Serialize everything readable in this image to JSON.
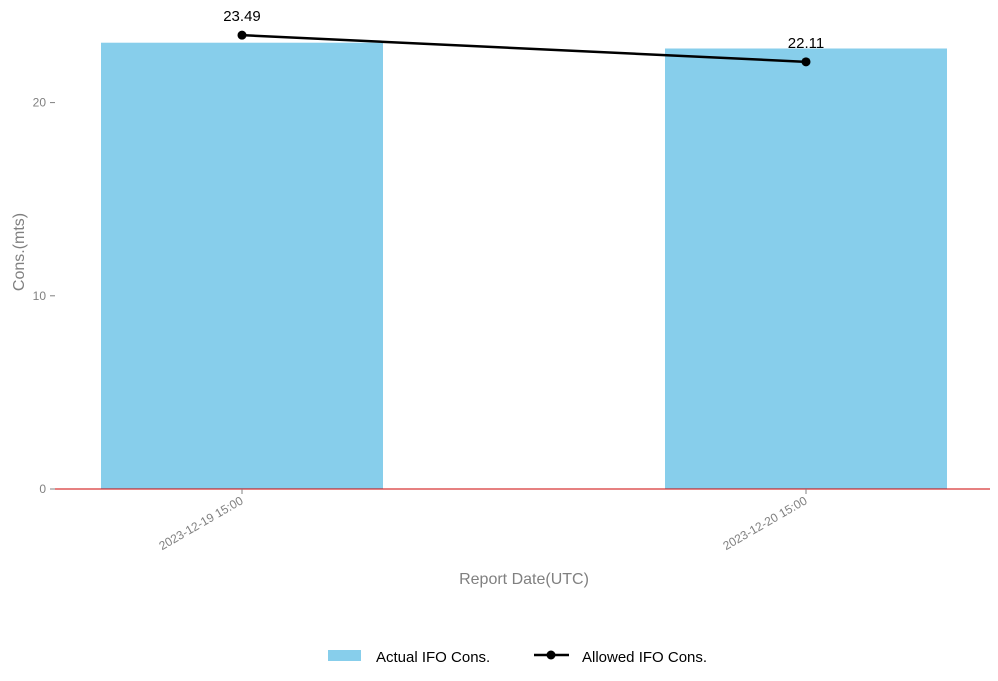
{
  "chart_data": {
    "type": "bar",
    "categories": [
      "2023-12-19 15:00",
      "2023-12-20 15:00"
    ],
    "series": [
      {
        "name": "Actual IFO Cons.",
        "type": "bar",
        "color": "#87CEEB",
        "values": [
          23.1,
          22.8
        ]
      },
      {
        "name": "Allowed IFO Cons.",
        "type": "line",
        "color": "#000000",
        "marker": "circle",
        "values": [
          23.49,
          22.11
        ],
        "labels": [
          "23.49",
          "22.11"
        ]
      }
    ],
    "xlabel": "Report Date(UTC)",
    "ylabel": "Cons.(mts)",
    "yticks": [
      0,
      10,
      20
    ],
    "ytick_labels": [
      "0",
      "10",
      "20"
    ],
    "ylim": [
      0,
      23.5
    ],
    "baseline_color": "#CC0000",
    "tick_color": "#808080",
    "grid": false,
    "legend_position": "bottom-center",
    "legend": [
      {
        "label": "Actual IFO Cons.",
        "kind": "bar-swatch",
        "color": "#87CEEB"
      },
      {
        "label": "Allowed IFO Cons.",
        "kind": "line-marker",
        "color": "#000000"
      }
    ]
  }
}
